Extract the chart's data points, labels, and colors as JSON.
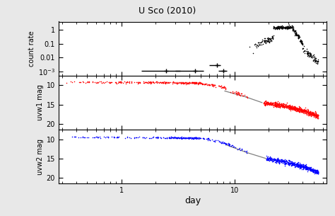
{
  "title": "U Sco (2010)",
  "xlabel": "day",
  "background": "#e8e8e8",
  "panel_bg": "#ffffff",
  "xlim": [
    0.28,
    65
  ],
  "xray_ylim": [
    0.0005,
    4
  ],
  "xray_yticks": [
    0.001,
    0.01,
    0.1,
    1
  ],
  "xray_yticklabels": [
    "$10^{-3}$",
    "0.01",
    "0.1",
    "1"
  ],
  "uv_ylim": [
    21.5,
    7.5
  ],
  "uv_yticks": [
    10,
    15,
    20
  ],
  "uv_yticklabels": [
    "10",
    "15",
    "20"
  ],
  "ylabel_xray": "count rate",
  "ylabel_uvw1": "uvw1 mag",
  "ylabel_uvw2": "uvw2 mag",
  "figsize": [
    4.74,
    3.05
  ],
  "dpi": 100
}
